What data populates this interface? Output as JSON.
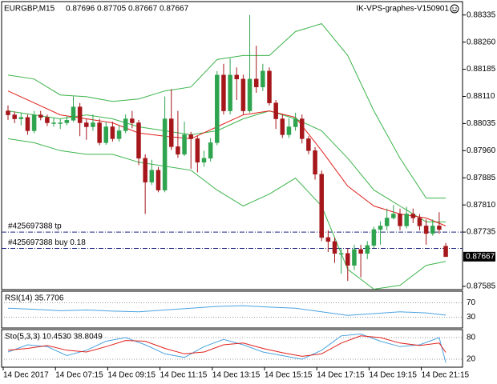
{
  "chart_data": {
    "type": "candlestick",
    "symbol": "EURGBP,M15",
    "watermark": "IK-VPS-graphes-V150901",
    "categories": [
      "14 Dec 2017",
      null,
      null,
      null,
      null,
      null,
      null,
      null,
      "14 Dec 07:15",
      null,
      null,
      null,
      null,
      null,
      null,
      null,
      "14 Dec 09:15",
      null,
      null,
      null,
      null,
      null,
      null,
      null,
      "14 Dec 11:15",
      null,
      null,
      null,
      null,
      null,
      null,
      null,
      "14 Dec 13:15",
      null,
      null,
      null,
      null,
      null,
      null,
      null,
      "14 Dec 15:15",
      null,
      null,
      null,
      null,
      null,
      null,
      null,
      "14 Dec 17:15",
      null,
      null,
      null,
      null,
      null,
      null,
      null,
      "14 Dec 19:15",
      null,
      null,
      null,
      null,
      null,
      null,
      null,
      "14 Dec 21:15",
      null,
      null,
      null
    ],
    "open": [
      0.8807,
      0.88059,
      0.88048,
      0.88052,
      0.88015,
      0.88059,
      0.88052,
      0.88037,
      0.88037,
      0.88037,
      0.88044,
      0.88081,
      0.88037,
      0.88026,
      0.88037,
      0.87982,
      0.88026,
      0.87993,
      0.88015,
      0.88048,
      0.88037,
      0.87939,
      0.87873,
      0.87906,
      0.87851,
      0.88048,
      0.87971,
      0.8795,
      0.88004,
      0.87993,
      0.87928,
      0.87939,
      0.87982,
      0.88169,
      0.8807,
      0.88169,
      0.88158,
      0.8807,
      0.88158,
      0.88136,
      0.8818,
      0.88092,
      0.88048,
      0.88004,
      0.88026,
      0.88048,
      0.87993,
      0.8796,
      0.87895,
      0.8772,
      0.87709,
      0.87676,
      0.87676,
      0.87643,
      0.87687,
      0.87676,
      0.87698,
      0.87742,
      0.87752,
      0.87774,
      0.87785,
      0.87752,
      0.87785,
      0.87774,
      0.87752,
      0.87731,
      0.87752,
      0.87696
    ],
    "high": [
      0.88085,
      0.88068,
      0.88064,
      0.8806,
      0.8807,
      0.8807,
      0.8806,
      0.8805,
      0.88048,
      0.88056,
      0.8811,
      0.88092,
      0.88048,
      0.8806,
      0.88048,
      0.8804,
      0.8804,
      0.8803,
      0.8806,
      0.8807,
      0.88045,
      0.8795,
      0.87935,
      0.87915,
      0.8811,
      0.8813,
      0.8807,
      0.8804,
      0.88012,
      0.88,
      0.8796,
      0.87995,
      0.8818,
      0.882,
      0.88215,
      0.8819,
      0.8817,
      0.88335,
      0.8825,
      0.882,
      0.8819,
      0.881,
      0.8806,
      0.8805,
      0.88065,
      0.8806,
      0.88,
      0.8797,
      0.87905,
      0.8774,
      0.8772,
      0.8769,
      0.8769,
      0.877,
      0.877,
      0.8771,
      0.8775,
      0.87765,
      0.878,
      0.8781,
      0.878,
      0.87805,
      0.878,
      0.87785,
      0.8777,
      0.8777,
      0.8779,
      0.87705
    ],
    "low": [
      0.88045,
      0.88036,
      0.8803,
      0.88004,
      0.88008,
      0.88044,
      0.88028,
      0.88026,
      0.8802,
      0.8803,
      0.8804,
      0.88,
      0.8799,
      0.88015,
      0.87975,
      0.87976,
      0.87985,
      0.87985,
      0.88008,
      0.88022,
      0.8792,
      0.87785,
      0.87865,
      0.87845,
      0.87845,
      0.87962,
      0.8794,
      0.87945,
      0.8791,
      0.879,
      0.87915,
      0.8793,
      0.87975,
      0.8806,
      0.8806,
      0.881,
      0.8806,
      0.88065,
      0.8812,
      0.88125,
      0.88085,
      0.8802,
      0.87995,
      0.87995,
      0.88015,
      0.8798,
      0.8795,
      0.8788,
      0.8771,
      0.8768,
      0.8765,
      0.8762,
      0.876,
      0.8763,
      0.8761,
      0.8766,
      0.8769,
      0.877,
      0.8774,
      0.8777,
      0.8774,
      0.87745,
      0.8776,
      0.8774,
      0.877,
      0.87725,
      0.8773,
      0.87667
    ],
    "close": [
      0.88059,
      0.88048,
      0.88052,
      0.88015,
      0.88059,
      0.88052,
      0.88037,
      0.88037,
      0.88037,
      0.88044,
      0.88081,
      0.88037,
      0.88026,
      0.88037,
      0.87982,
      0.88026,
      0.87993,
      0.88015,
      0.88048,
      0.88037,
      0.87939,
      0.87873,
      0.87906,
      0.87851,
      0.88048,
      0.87971,
      0.8795,
      0.88004,
      0.87993,
      0.87928,
      0.87939,
      0.87982,
      0.88169,
      0.8807,
      0.88169,
      0.88158,
      0.8807,
      0.88158,
      0.88136,
      0.8818,
      0.88092,
      0.88048,
      0.88004,
      0.88026,
      0.88048,
      0.87993,
      0.8796,
      0.87895,
      0.8772,
      0.87709,
      0.87676,
      0.87676,
      0.87643,
      0.87687,
      0.87676,
      0.87698,
      0.87742,
      0.87752,
      0.87774,
      0.87785,
      0.87752,
      0.87785,
      0.87774,
      0.87752,
      0.87731,
      0.87752,
      0.87742,
      0.87667
    ],
    "up_color": "#2fa44f",
    "down_color": "#a5171b",
    "ylim": [
      0.87576,
      0.88372
    ],
    "yticks": [
      0.88335,
      {
        "value": 0.8826,
        "label": "0.88260"
      },
      0.88185,
      {
        "value": 0.8811,
        "label": "0.88110"
      },
      0.88035,
      {
        "value": 0.8796,
        "label": "0.87960"
      },
      0.87885,
      {
        "value": 0.8781,
        "label": "0.87810"
      },
      0.87735,
      0.87585
    ],
    "bands": {
      "color": "#3cb44b",
      "x": [
        0,
        4,
        8,
        12,
        16,
        20,
        24,
        28,
        32,
        36,
        40,
        44,
        48,
        52,
        56,
        60,
        64,
        67
      ],
      "upper": [
        0.88169,
        0.88158,
        0.88114,
        0.88109,
        0.88096,
        0.88103,
        0.88125,
        0.88136,
        0.88212,
        0.88223,
        0.88223,
        0.88289,
        0.88311,
        0.88223,
        0.8807,
        0.87939,
        0.87829,
        0.87829
      ],
      "middle": [
        0.8807,
        0.88059,
        0.88048,
        0.88059,
        0.88048,
        0.88026,
        0.88015,
        0.88004,
        0.88015,
        0.88048,
        0.8807,
        0.88048,
        0.88015,
        0.87939,
        0.87851,
        0.87807,
        0.87763,
        0.87763
      ],
      "lower": [
        0.87993,
        0.87982,
        0.8796,
        0.8795,
        0.8795,
        0.87928,
        0.87917,
        0.87906,
        0.87851,
        0.87807,
        0.8784,
        0.87884,
        0.87807,
        0.87632,
        0.87577,
        0.87588,
        0.87643,
        0.87654
      ]
    },
    "ma": {
      "color": "#e0201b",
      "x": [
        0,
        4,
        8,
        12,
        16,
        20,
        24,
        28,
        32,
        36,
        40,
        44,
        48,
        52,
        56,
        60,
        64,
        67
      ],
      "values": [
        0.88125,
        0.88092,
        0.88059,
        0.88048,
        0.88037,
        0.88009,
        0.88,
        0.87993,
        0.88026,
        0.88059,
        0.8807,
        0.88052,
        0.8796,
        0.87862,
        0.87807,
        0.87785,
        0.87774,
        0.87752
      ]
    },
    "levels": [
      {
        "label": "#425697388 tp",
        "value": 0.87735
      },
      {
        "label": "#425697388 buy 0.18",
        "value": 0.8769
      }
    ],
    "level_color": "#1a237e",
    "rsi": {
      "label": "RSI(14) 35.7706",
      "color": "#4aa3df",
      "ylim": [
        0,
        100
      ],
      "yticks": [
        70,
        30
      ],
      "x": [
        0,
        4,
        8,
        12,
        16,
        20,
        24,
        28,
        32,
        36,
        40,
        44,
        48,
        52,
        56,
        60,
        64,
        67
      ],
      "values": [
        55,
        52,
        48,
        50,
        47,
        45,
        50,
        55,
        60,
        62,
        58,
        55,
        45,
        35,
        40,
        45,
        42,
        35.7706
      ]
    },
    "stoch": {
      "label": "Sto(5,3,3) 10.4530 38.8049",
      "ylim": [
        0,
        100
      ],
      "yticks": [
        80,
        20
      ],
      "x": [
        0,
        3,
        6,
        9,
        12,
        15,
        18,
        21,
        24,
        27,
        30,
        33,
        36,
        39,
        42,
        45,
        48,
        51,
        54,
        57,
        60,
        63,
        66,
        67
      ],
      "main": {
        "color": "#4aa3df",
        "values": [
          40,
          60,
          55,
          30,
          45,
          70,
          80,
          60,
          35,
          25,
          55,
          75,
          60,
          40,
          30,
          20,
          45,
          85,
          90,
          70,
          55,
          60,
          80,
          10.453
        ]
      },
      "signal": {
        "color": "#e0201b",
        "values": [
          45,
          50,
          58,
          45,
          40,
          55,
          72,
          70,
          50,
          35,
          40,
          60,
          65,
          50,
          38,
          28,
          35,
          65,
          85,
          80,
          65,
          58,
          65,
          38.8049
        ]
      }
    }
  }
}
